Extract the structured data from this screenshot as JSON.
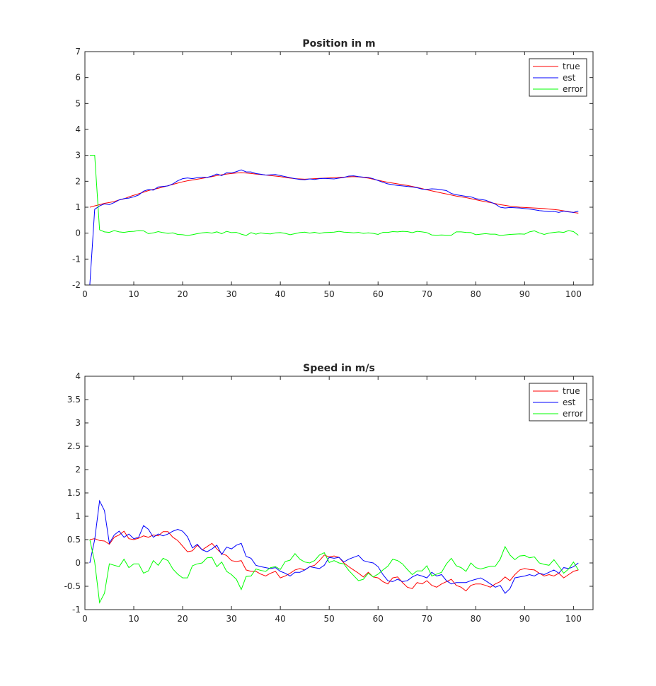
{
  "chart_data": [
    {
      "type": "line",
      "title": "Position in m",
      "xlabel": "",
      "ylabel": "",
      "xlim": [
        0,
        104
      ],
      "ylim": [
        -2,
        7
      ],
      "xticks": [
        "0",
        "10",
        "20",
        "30",
        "40",
        "50",
        "60",
        "70",
        "80",
        "90",
        "100"
      ],
      "yticks": [
        "-2",
        "-1",
        "0",
        "1",
        "2",
        "3",
        "4",
        "5",
        "6",
        "7"
      ],
      "legend_position": "top-right",
      "grid": false,
      "x": [
        1,
        2,
        3,
        4,
        5,
        6,
        7,
        8,
        9,
        10,
        11,
        12,
        13,
        14,
        15,
        16,
        17,
        18,
        19,
        20,
        21,
        22,
        23,
        24,
        25,
        26,
        27,
        28,
        29,
        30,
        31,
        32,
        33,
        34,
        35,
        36,
        37,
        38,
        39,
        40,
        41,
        42,
        43,
        44,
        45,
        46,
        47,
        48,
        49,
        50,
        51,
        52,
        53,
        54,
        55,
        56,
        57,
        58,
        59,
        60,
        61,
        62,
        63,
        64,
        65,
        66,
        67,
        68,
        69,
        70,
        71,
        72,
        73,
        74,
        75,
        76,
        77,
        78,
        79,
        80,
        81,
        82,
        83,
        84,
        85,
        86,
        87,
        88,
        89,
        90,
        91,
        92,
        93,
        94,
        95,
        96,
        97,
        98,
        99,
        100,
        101
      ],
      "series": [
        {
          "name": "true",
          "color": "#ff0000",
          "values": [
            1.0,
            1.05,
            1.1,
            1.15,
            1.18,
            1.22,
            1.28,
            1.32,
            1.4,
            1.46,
            1.52,
            1.58,
            1.64,
            1.69,
            1.73,
            1.78,
            1.83,
            1.88,
            1.93,
            1.98,
            2.02,
            2.05,
            2.08,
            2.11,
            2.15,
            2.18,
            2.22,
            2.25,
            2.28,
            2.3,
            2.32,
            2.33,
            2.32,
            2.3,
            2.28,
            2.26,
            2.24,
            2.22,
            2.2,
            2.18,
            2.15,
            2.12,
            2.1,
            2.09,
            2.08,
            2.09,
            2.1,
            2.11,
            2.12,
            2.13,
            2.14,
            2.15,
            2.16,
            2.17,
            2.18,
            2.17,
            2.15,
            2.12,
            2.08,
            2.04,
            2.0,
            1.96,
            1.93,
            1.9,
            1.87,
            1.84,
            1.8,
            1.76,
            1.72,
            1.67,
            1.63,
            1.59,
            1.55,
            1.51,
            1.47,
            1.43,
            1.4,
            1.37,
            1.33,
            1.29,
            1.25,
            1.21,
            1.18,
            1.14,
            1.1,
            1.07,
            1.04,
            1.02,
            1.0,
            0.99,
            0.98,
            0.97,
            0.96,
            0.95,
            0.93,
            0.91,
            0.89,
            0.86,
            0.83,
            0.8,
            0.77
          ]
        },
        {
          "name": "est",
          "color": "#0000ff",
          "values": [
            -2.0,
            0.92,
            1.05,
            1.13,
            1.1,
            1.18,
            1.28,
            1.33,
            1.35,
            1.4,
            1.47,
            1.62,
            1.68,
            1.66,
            1.78,
            1.8,
            1.82,
            1.9,
            2.02,
            2.1,
            2.13,
            2.1,
            2.14,
            2.16,
            2.15,
            2.2,
            2.28,
            2.22,
            2.33,
            2.32,
            2.37,
            2.44,
            2.36,
            2.36,
            2.3,
            2.27,
            2.24,
            2.25,
            2.26,
            2.22,
            2.18,
            2.14,
            2.1,
            2.07,
            2.06,
            2.09,
            2.07,
            2.1,
            2.11,
            2.1,
            2.09,
            2.12,
            2.15,
            2.2,
            2.21,
            2.18,
            2.16,
            2.15,
            2.1,
            2.03,
            1.96,
            1.9,
            1.87,
            1.84,
            1.82,
            1.8,
            1.78,
            1.75,
            1.7,
            1.69,
            1.71,
            1.7,
            1.67,
            1.64,
            1.53,
            1.48,
            1.45,
            1.42,
            1.4,
            1.33,
            1.3,
            1.27,
            1.2,
            1.12,
            1.0,
            0.97,
            0.99,
            0.98,
            0.97,
            0.95,
            0.93,
            0.9,
            0.87,
            0.85,
            0.83,
            0.84,
            0.8,
            0.85,
            0.82,
            0.8,
            0.85
          ]
        },
        {
          "name": "error",
          "color": "#00ff00",
          "values": [
            3.0,
            3.0,
            0.13,
            0.05,
            0.03,
            0.1,
            0.05,
            0.03,
            0.06,
            0.07,
            0.1,
            0.09,
            -0.02,
            0.01,
            0.06,
            0.02,
            -0.01,
            0.01,
            -0.05,
            -0.06,
            -0.09,
            -0.06,
            -0.02,
            0.01,
            0.03,
            0.0,
            0.05,
            -0.02,
            0.07,
            0.02,
            0.03,
            -0.04,
            -0.09,
            0.02,
            -0.04,
            0.01,
            -0.02,
            -0.03,
            0.01,
            0.02,
            -0.01,
            -0.06,
            -0.02,
            0.02,
            0.04,
            0.0,
            0.03,
            -0.01,
            0.02,
            0.03,
            0.04,
            0.07,
            0.04,
            0.03,
            0.01,
            0.03,
            -0.01,
            0.01,
            -0.01,
            -0.05,
            0.03,
            0.03,
            0.06,
            0.05,
            0.07,
            0.06,
            0.02,
            0.07,
            0.05,
            0.02,
            -0.07,
            -0.08,
            -0.07,
            -0.08,
            -0.08,
            0.05,
            0.05,
            0.03,
            0.02,
            -0.06,
            -0.04,
            -0.02,
            -0.04,
            -0.04,
            -0.09,
            -0.07,
            -0.05,
            -0.04,
            -0.03,
            -0.04,
            0.05,
            0.09,
            0.01,
            -0.05,
            0.0,
            0.03,
            0.05,
            0.03,
            0.1,
            0.06,
            -0.08
          ]
        }
      ]
    },
    {
      "type": "line",
      "title": "Speed in m/s",
      "xlabel": "",
      "ylabel": "",
      "xlim": [
        0,
        104
      ],
      "ylim": [
        -1,
        4
      ],
      "xticks": [
        "0",
        "10",
        "20",
        "30",
        "40",
        "50",
        "60",
        "70",
        "80",
        "90",
        "100"
      ],
      "yticks": [
        "-1",
        "-0.5",
        "0",
        "0.5",
        "1",
        "1.5",
        "2",
        "2.5",
        "3",
        "3.5",
        "4"
      ],
      "legend_position": "top-right",
      "grid": false,
      "x": [
        1,
        2,
        3,
        4,
        5,
        6,
        7,
        8,
        9,
        10,
        11,
        12,
        13,
        14,
        15,
        16,
        17,
        18,
        19,
        20,
        21,
        22,
        23,
        24,
        25,
        26,
        27,
        28,
        29,
        30,
        31,
        32,
        33,
        34,
        35,
        36,
        37,
        38,
        39,
        40,
        41,
        42,
        43,
        44,
        45,
        46,
        47,
        48,
        49,
        50,
        51,
        52,
        53,
        54,
        55,
        56,
        57,
        58,
        59,
        60,
        61,
        62,
        63,
        64,
        65,
        66,
        67,
        68,
        69,
        70,
        71,
        72,
        73,
        74,
        75,
        76,
        77,
        78,
        79,
        80,
        81,
        82,
        83,
        84,
        85,
        86,
        87,
        88,
        89,
        90,
        91,
        92,
        93,
        94,
        95,
        96,
        97,
        98,
        99,
        100,
        101
      ],
      "series": [
        {
          "name": "true",
          "color": "#ff0000",
          "values": [
            0.5,
            0.52,
            0.48,
            0.47,
            0.4,
            0.55,
            0.6,
            0.68,
            0.52,
            0.5,
            0.53,
            0.58,
            0.55,
            0.6,
            0.58,
            0.67,
            0.67,
            0.55,
            0.48,
            0.36,
            0.24,
            0.26,
            0.38,
            0.28,
            0.35,
            0.42,
            0.3,
            0.2,
            0.16,
            0.05,
            0.03,
            0.05,
            -0.15,
            -0.18,
            -0.18,
            -0.24,
            -0.28,
            -0.22,
            -0.18,
            -0.32,
            -0.28,
            -0.22,
            -0.15,
            -0.12,
            -0.15,
            -0.08,
            -0.05,
            0.05,
            0.17,
            0.13,
            0.15,
            0.12,
            0.0,
            -0.08,
            -0.15,
            -0.22,
            -0.3,
            -0.2,
            -0.3,
            -0.32,
            -0.4,
            -0.45,
            -0.32,
            -0.3,
            -0.42,
            -0.52,
            -0.55,
            -0.42,
            -0.45,
            -0.38,
            -0.48,
            -0.52,
            -0.45,
            -0.4,
            -0.35,
            -0.48,
            -0.52,
            -0.6,
            -0.48,
            -0.45,
            -0.45,
            -0.48,
            -0.52,
            -0.45,
            -0.4,
            -0.3,
            -0.38,
            -0.25,
            -0.15,
            -0.12,
            -0.14,
            -0.15,
            -0.22,
            -0.28,
            -0.25,
            -0.28,
            -0.22,
            -0.32,
            -0.25,
            -0.18,
            -0.15
          ]
        },
        {
          "name": "est",
          "color": "#0000ff",
          "values": [
            0.0,
            0.5,
            1.33,
            1.12,
            0.42,
            0.6,
            0.68,
            0.55,
            0.62,
            0.52,
            0.55,
            0.8,
            0.72,
            0.55,
            0.62,
            0.58,
            0.62,
            0.68,
            0.72,
            0.68,
            0.56,
            0.32,
            0.4,
            0.28,
            0.24,
            0.3,
            0.38,
            0.18,
            0.34,
            0.3,
            0.38,
            0.42,
            0.14,
            0.1,
            -0.05,
            -0.08,
            -0.1,
            -0.12,
            -0.1,
            -0.18,
            -0.22,
            -0.28,
            -0.2,
            -0.2,
            -0.15,
            -0.08,
            -0.1,
            -0.12,
            -0.05,
            0.12,
            0.1,
            0.12,
            0.02,
            0.08,
            0.12,
            0.16,
            0.05,
            0.02,
            0.0,
            -0.08,
            -0.25,
            -0.38,
            -0.4,
            -0.35,
            -0.4,
            -0.38,
            -0.3,
            -0.25,
            -0.28,
            -0.32,
            -0.2,
            -0.28,
            -0.25,
            -0.38,
            -0.45,
            -0.42,
            -0.42,
            -0.42,
            -0.38,
            -0.35,
            -0.32,
            -0.38,
            -0.45,
            -0.52,
            -0.48,
            -0.65,
            -0.55,
            -0.32,
            -0.3,
            -0.28,
            -0.25,
            -0.28,
            -0.22,
            -0.25,
            -0.2,
            -0.15,
            -0.22,
            -0.1,
            -0.12,
            -0.08,
            0.0
          ]
        },
        {
          "name": "error",
          "color": "#00ff00",
          "values": [
            0.5,
            0.02,
            -0.85,
            -0.65,
            -0.02,
            -0.05,
            -0.08,
            0.08,
            -0.1,
            -0.02,
            -0.02,
            -0.22,
            -0.17,
            0.05,
            -0.05,
            0.1,
            0.05,
            -0.13,
            -0.24,
            -0.32,
            -0.32,
            -0.06,
            -0.02,
            0.0,
            0.11,
            0.12,
            -0.08,
            0.02,
            -0.18,
            -0.25,
            -0.35,
            -0.57,
            -0.29,
            -0.28,
            -0.13,
            -0.16,
            -0.18,
            -0.1,
            -0.08,
            -0.14,
            0.03,
            0.06,
            0.2,
            0.08,
            0.02,
            0.0,
            0.05,
            0.17,
            0.22,
            0.01,
            0.05,
            0.0,
            -0.02,
            -0.16,
            -0.27,
            -0.38,
            -0.35,
            -0.22,
            -0.3,
            -0.24,
            -0.15,
            -0.07,
            0.08,
            0.05,
            -0.02,
            -0.14,
            -0.25,
            -0.17,
            -0.17,
            -0.06,
            -0.28,
            -0.24,
            -0.2,
            -0.02,
            0.1,
            -0.06,
            -0.1,
            -0.18,
            0.0,
            -0.1,
            -0.13,
            -0.1,
            -0.07,
            -0.07,
            0.08,
            0.35,
            0.17,
            0.07,
            0.15,
            0.16,
            0.11,
            0.13,
            0.0,
            -0.03,
            -0.05,
            0.07,
            -0.07,
            -0.22,
            -0.13,
            0.02,
            -0.15
          ]
        }
      ]
    }
  ]
}
